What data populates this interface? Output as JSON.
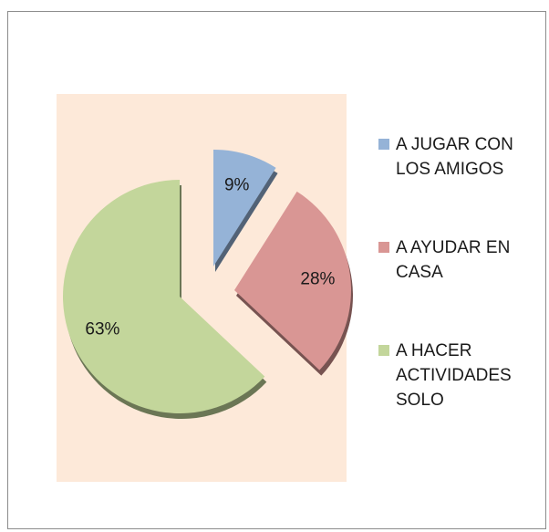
{
  "chart_data": {
    "type": "pie",
    "categories": [
      "A JUGAR CON LOS AMIGOS",
      "A AYUDAR EN CASA",
      "A HACER ACTIVIDADES SOLO"
    ],
    "values": [
      9,
      28,
      63
    ],
    "value_labels": [
      "9%",
      "28%",
      "63%"
    ],
    "colors": [
      "#95b3d7",
      "#d99694",
      "#c3d69b"
    ],
    "legend": "right"
  }
}
